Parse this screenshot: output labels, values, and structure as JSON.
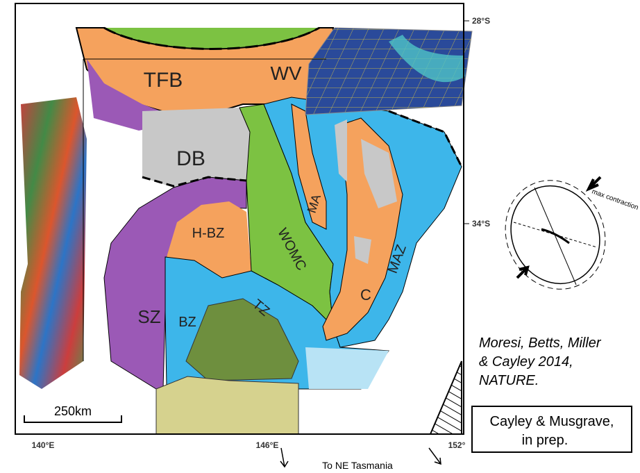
{
  "map": {
    "latitude_labels": [
      "28°S",
      "34°S"
    ],
    "longitude_labels": [
      "140°E",
      "146°E",
      "152°"
    ],
    "zones": [
      "TFB",
      "WV",
      "DB",
      "H-BZ",
      "MA",
      "WOMC",
      "SZ",
      "BZ",
      "TZ",
      "C",
      "MAZ"
    ],
    "scale_bar": "250km",
    "direction_note": "To NE Tasmania"
  },
  "stress_diagram": {
    "label": "max contraction"
  },
  "citation": {
    "lines": [
      "Moresi, Betts, Miller",
      "& Cayley  2014,",
      "NATURE."
    ]
  },
  "note_box": {
    "lines": [
      "Cayley & Musgrave,",
      "in prep."
    ]
  }
}
